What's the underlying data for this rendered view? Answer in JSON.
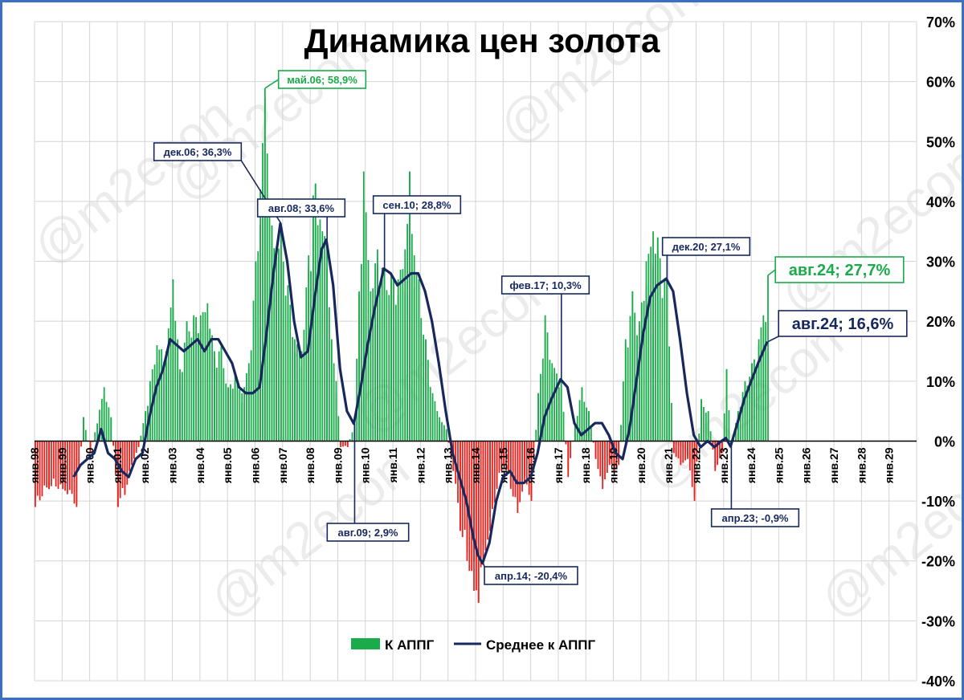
{
  "chart_data": {
    "type": "bar",
    "title": "Динамика цен золота",
    "watermark": "@m2econ",
    "colors": {
      "positive": "#1aab4a",
      "negative": "#e8201c",
      "line": "#17285f",
      "grid": "#d4d4d4"
    },
    "ylim": [
      -40,
      70
    ],
    "yticks": [
      {
        "v": 70,
        "label": "70%"
      },
      {
        "v": 60,
        "label": "60%"
      },
      {
        "v": 50,
        "label": "50%"
      },
      {
        "v": 40,
        "label": "40%"
      },
      {
        "v": 30,
        "label": "30%"
      },
      {
        "v": 20,
        "label": "20%"
      },
      {
        "v": 10,
        "label": "10%"
      },
      {
        "v": 0,
        "label": "0%"
      },
      {
        "v": -10,
        "label": "-10%"
      },
      {
        "v": -20,
        "label": "-20%"
      },
      {
        "v": -30,
        "label": "-30%"
      },
      {
        "v": -40,
        "label": "-40%"
      }
    ],
    "xlim": [
      "1998-01",
      "2030-01"
    ],
    "xticks": [
      "янв.98",
      "янв.99",
      "янв.00",
      "янв.01",
      "янв.02",
      "янв.03",
      "янв.04",
      "янв.05",
      "янв.06",
      "янв.07",
      "янв.08",
      "янв.09",
      "янв.10",
      "янв.11",
      "янв.12",
      "янв.13",
      "янв.14",
      "янв.15",
      "янв.16",
      "янв.17",
      "янв.18",
      "янв.19",
      "янв.20",
      "янв.21",
      "янв.22",
      "янв.23",
      "янв.24",
      "янв.25",
      "янв.26",
      "янв.27",
      "янв.28",
      "янв.29"
    ],
    "legend": {
      "position": "bottom-center",
      "items": [
        {
          "label": "К АППГ",
          "kind": "bar"
        },
        {
          "label": "Среднее к АППГ",
          "kind": "line"
        }
      ]
    },
    "series": [
      {
        "name": "К АППГ",
        "kind": "bar",
        "points": [
          [
            "1998-01",
            -11
          ],
          [
            "1998-07",
            -8
          ],
          [
            "1999-01",
            -8
          ],
          [
            "1999-07",
            -11
          ],
          [
            "1999-10",
            4
          ],
          [
            "2000-01",
            -2
          ],
          [
            "2000-07",
            9
          ],
          [
            "2000-10",
            4
          ],
          [
            "2001-01",
            -11
          ],
          [
            "2001-04",
            -9
          ],
          [
            "2001-07",
            -4
          ],
          [
            "2001-10",
            -1
          ],
          [
            "2002-01",
            5
          ],
          [
            "2002-03",
            10
          ],
          [
            "2002-06",
            16
          ],
          [
            "2002-10",
            15
          ],
          [
            "2003-01",
            27
          ],
          [
            "2003-04",
            12
          ],
          [
            "2003-07",
            20
          ],
          [
            "2003-10",
            21
          ],
          [
            "2004-01",
            21
          ],
          [
            "2004-04",
            23
          ],
          [
            "2004-07",
            15
          ],
          [
            "2004-10",
            16
          ],
          [
            "2005-01",
            9
          ],
          [
            "2005-04",
            11
          ],
          [
            "2005-07",
            8
          ],
          [
            "2005-10",
            13
          ],
          [
            "2006-01",
            30
          ],
          [
            "2006-03",
            42
          ],
          [
            "2006-05",
            58.9
          ],
          [
            "2006-06",
            48
          ],
          [
            "2006-08",
            36
          ],
          [
            "2006-10",
            32
          ],
          [
            "2006-12",
            36.3
          ],
          [
            "2007-03",
            26
          ],
          [
            "2007-06",
            17
          ],
          [
            "2007-09",
            15
          ],
          [
            "2007-12",
            31
          ],
          [
            "2008-02",
            41
          ],
          [
            "2008-03",
            43
          ],
          [
            "2008-05",
            37
          ],
          [
            "2008-08",
            33.6
          ],
          [
            "2008-10",
            17
          ],
          [
            "2008-12",
            10
          ],
          [
            "2009-02",
            -1
          ],
          [
            "2009-05",
            -1
          ],
          [
            "2009-08",
            3
          ],
          [
            "2009-10",
            25
          ],
          [
            "2009-12",
            45
          ],
          [
            "2010-03",
            25
          ],
          [
            "2010-06",
            32
          ],
          [
            "2010-09",
            29
          ],
          [
            "2010-12",
            28
          ],
          [
            "2011-03",
            27
          ],
          [
            "2011-06",
            32
          ],
          [
            "2011-08",
            45
          ],
          [
            "2011-10",
            31
          ],
          [
            "2011-12",
            27
          ],
          [
            "2012-03",
            17
          ],
          [
            "2012-06",
            8
          ],
          [
            "2012-09",
            4
          ],
          [
            "2012-12",
            2
          ],
          [
            "2013-03",
            -5
          ],
          [
            "2013-06",
            -15
          ],
          [
            "2013-09",
            -20
          ],
          [
            "2013-12",
            -25
          ],
          [
            "2014-02",
            -27
          ],
          [
            "2014-04",
            -20.4
          ],
          [
            "2014-07",
            -15
          ],
          [
            "2014-10",
            -8
          ],
          [
            "2015-01",
            -4
          ],
          [
            "2015-04",
            -8
          ],
          [
            "2015-07",
            -12
          ],
          [
            "2015-10",
            -7
          ],
          [
            "2016-01",
            -10
          ],
          [
            "2016-04",
            8
          ],
          [
            "2016-07",
            21
          ],
          [
            "2016-10",
            13
          ],
          [
            "2017-02",
            10.3
          ],
          [
            "2017-05",
            -6
          ],
          [
            "2017-08",
            3
          ],
          [
            "2017-11",
            9
          ],
          [
            "2018-02",
            5
          ],
          [
            "2018-05",
            -3
          ],
          [
            "2018-08",
            -8
          ],
          [
            "2018-11",
            -4
          ],
          [
            "2019-01",
            -5
          ],
          [
            "2019-03",
            -4
          ],
          [
            "2019-06",
            17
          ],
          [
            "2019-09",
            25
          ],
          [
            "2019-12",
            20
          ],
          [
            "2020-03",
            30
          ],
          [
            "2020-06",
            35
          ],
          [
            "2020-08",
            34
          ],
          [
            "2020-12",
            27.1
          ],
          [
            "2021-03",
            -2
          ],
          [
            "2021-06",
            -4
          ],
          [
            "2021-09",
            -3
          ],
          [
            "2021-12",
            -10
          ],
          [
            "2022-03",
            7
          ],
          [
            "2022-06",
            5
          ],
          [
            "2022-09",
            -5
          ],
          [
            "2022-12",
            -2
          ],
          [
            "2023-02",
            12
          ],
          [
            "2023-04",
            -0.9
          ],
          [
            "2023-07",
            5
          ],
          [
            "2023-10",
            10
          ],
          [
            "2024-01",
            13
          ],
          [
            "2024-04",
            17
          ],
          [
            "2024-06",
            21
          ],
          [
            "2024-08",
            27.7
          ]
        ]
      },
      {
        "name": "Среднее к АППГ",
        "kind": "line",
        "points": [
          [
            "1999-06",
            -6
          ],
          [
            "1999-09",
            -4
          ],
          [
            "1999-12",
            -3
          ],
          [
            "2000-03",
            -2
          ],
          [
            "2000-06",
            2
          ],
          [
            "2000-09",
            -2
          ],
          [
            "2000-12",
            -3
          ],
          [
            "2001-03",
            -5
          ],
          [
            "2001-06",
            -6
          ],
          [
            "2001-09",
            -3
          ],
          [
            "2001-12",
            -2
          ],
          [
            "2002-03",
            4
          ],
          [
            "2002-06",
            9
          ],
          [
            "2002-09",
            12
          ],
          [
            "2002-12",
            17
          ],
          [
            "2003-03",
            16
          ],
          [
            "2003-06",
            15
          ],
          [
            "2003-09",
            16
          ],
          [
            "2003-12",
            17
          ],
          [
            "2004-03",
            15
          ],
          [
            "2004-06",
            17
          ],
          [
            "2004-09",
            17
          ],
          [
            "2004-12",
            15
          ],
          [
            "2005-03",
            13
          ],
          [
            "2005-06",
            9
          ],
          [
            "2005-09",
            8
          ],
          [
            "2005-12",
            8
          ],
          [
            "2006-03",
            9
          ],
          [
            "2006-06",
            18
          ],
          [
            "2006-09",
            28
          ],
          [
            "2006-12",
            36.3
          ],
          [
            "2007-03",
            30
          ],
          [
            "2007-06",
            20
          ],
          [
            "2007-09",
            14
          ],
          [
            "2007-12",
            15
          ],
          [
            "2008-03",
            24
          ],
          [
            "2008-06",
            32
          ],
          [
            "2008-08",
            33.6
          ],
          [
            "2008-11",
            26
          ],
          [
            "2009-02",
            12
          ],
          [
            "2009-05",
            5
          ],
          [
            "2009-08",
            2.9
          ],
          [
            "2009-11",
            9
          ],
          [
            "2010-02",
            16
          ],
          [
            "2010-05",
            22
          ],
          [
            "2010-08",
            27
          ],
          [
            "2010-09",
            28.8
          ],
          [
            "2010-12",
            28
          ],
          [
            "2011-03",
            26
          ],
          [
            "2011-06",
            27
          ],
          [
            "2011-09",
            28
          ],
          [
            "2011-12",
            28
          ],
          [
            "2012-03",
            25
          ],
          [
            "2012-06",
            20
          ],
          [
            "2012-09",
            13
          ],
          [
            "2012-12",
            5
          ],
          [
            "2013-03",
            -2
          ],
          [
            "2013-06",
            -6
          ],
          [
            "2013-09",
            -10
          ],
          [
            "2013-12",
            -16
          ],
          [
            "2014-02",
            -19
          ],
          [
            "2014-04",
            -20.4
          ],
          [
            "2014-07",
            -17
          ],
          [
            "2014-10",
            -10
          ],
          [
            "2015-01",
            -6
          ],
          [
            "2015-04",
            -5
          ],
          [
            "2015-07",
            -7
          ],
          [
            "2015-10",
            -7
          ],
          [
            "2016-01",
            -6
          ],
          [
            "2016-04",
            -2
          ],
          [
            "2016-07",
            4
          ],
          [
            "2016-10",
            7
          ],
          [
            "2017-02",
            10.3
          ],
          [
            "2017-05",
            9
          ],
          [
            "2017-08",
            3
          ],
          [
            "2017-11",
            1
          ],
          [
            "2018-02",
            2
          ],
          [
            "2018-05",
            3
          ],
          [
            "2018-08",
            3
          ],
          [
            "2018-11",
            1
          ],
          [
            "2019-02",
            -2
          ],
          [
            "2019-05",
            -3
          ],
          [
            "2019-08",
            2
          ],
          [
            "2019-11",
            10
          ],
          [
            "2020-02",
            18
          ],
          [
            "2020-05",
            24
          ],
          [
            "2020-08",
            26
          ],
          [
            "2020-12",
            27.1
          ],
          [
            "2021-03",
            25
          ],
          [
            "2021-06",
            17
          ],
          [
            "2021-09",
            8
          ],
          [
            "2021-12",
            1
          ],
          [
            "2022-03",
            -1
          ],
          [
            "2022-06",
            0
          ],
          [
            "2022-09",
            -1
          ],
          [
            "2022-12",
            0
          ],
          [
            "2023-02",
            0.5
          ],
          [
            "2023-04",
            -0.9
          ],
          [
            "2023-07",
            3
          ],
          [
            "2023-10",
            7
          ],
          [
            "2024-01",
            10
          ],
          [
            "2024-04",
            13
          ],
          [
            "2024-08",
            16.6
          ]
        ]
      }
    ],
    "annotations": [
      {
        "text": "май.06; 58,9%",
        "series": "К АППГ",
        "at": [
          "2006-05",
          58.9
        ],
        "style": "green"
      },
      {
        "text": "дек.06; 36,3%",
        "series": "Среднее к АППГ",
        "at": [
          "2006-12",
          36.3
        ],
        "style": "navy"
      },
      {
        "text": "авг.08; 33,6%",
        "series": "Среднее к АППГ",
        "at": [
          "2008-08",
          33.6
        ],
        "style": "navy"
      },
      {
        "text": "сен.10; 28,8%",
        "series": "Среднее к АППГ",
        "at": [
          "2010-09",
          28.8
        ],
        "style": "navy"
      },
      {
        "text": "авг.09; 2,9%",
        "series": "Среднее к АППГ",
        "at": [
          "2009-08",
          2.9
        ],
        "style": "navy"
      },
      {
        "text": "апр.14; -20,4%",
        "series": "Среднее к АППГ",
        "at": [
          "2014-04",
          -20.4
        ],
        "style": "navy"
      },
      {
        "text": "фев.17; 10,3%",
        "series": "Среднее к АППГ",
        "at": [
          "2017-02",
          10.3
        ],
        "style": "navy"
      },
      {
        "text": "дек.20; 27,1%",
        "series": "Среднее к АППГ",
        "at": [
          "2020-12",
          27.1
        ],
        "style": "navy"
      },
      {
        "text": "апр.23; -0,9%",
        "series": "Среднее к АППГ",
        "at": [
          "2023-04",
          -0.9
        ],
        "style": "navy"
      },
      {
        "text": "авг.24; 27,7%",
        "series": "К АППГ",
        "at": [
          "2024-08",
          27.7
        ],
        "style": "green-big"
      },
      {
        "text": "авг.24; 16,6%",
        "series": "Среднее к АППГ",
        "at": [
          "2024-08",
          16.6
        ],
        "style": "navy-big"
      }
    ]
  }
}
